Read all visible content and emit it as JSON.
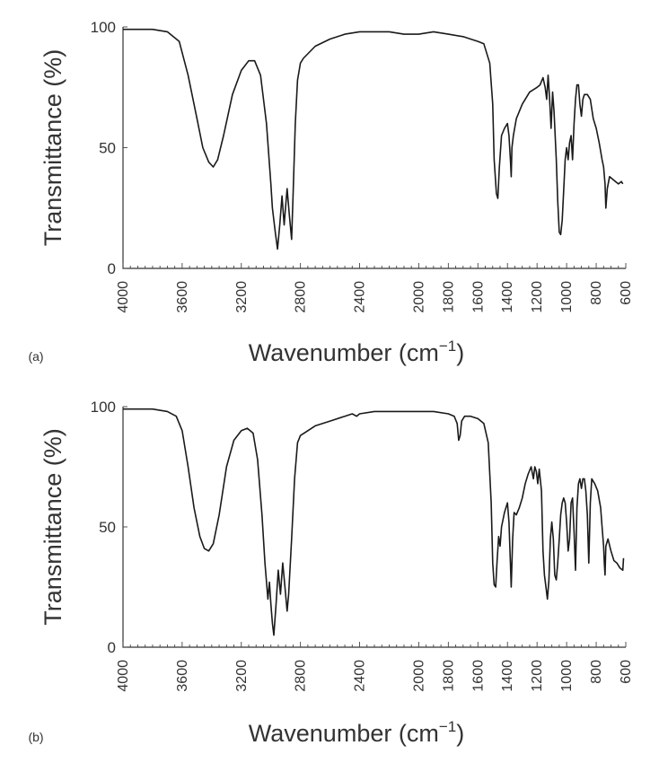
{
  "chart_data": [
    {
      "type": "line",
      "panel_label": "(a)",
      "ylabel": "Transmittance (%)",
      "xlabel_main": "Wavenumber (cm",
      "xlabel_sup": "−1",
      "xlabel_close": ")",
      "xlim": [
        4000,
        600
      ],
      "ylim": [
        0,
        100
      ],
      "x_reversed": true,
      "xticks": [
        "4000",
        "3600",
        "3200",
        "2800",
        "2400",
        "2000",
        "1800",
        "1600",
        "1400",
        "1200",
        "1000",
        "800",
        "600"
      ],
      "yticks": [
        "0",
        "50",
        "100"
      ],
      "series": [
        {
          "points": [
            [
              4000,
              99
            ],
            [
              3800,
              99
            ],
            [
              3700,
              98
            ],
            [
              3620,
              94
            ],
            [
              3560,
              80
            ],
            [
              3500,
              62
            ],
            [
              3460,
              50
            ],
            [
              3420,
              44
            ],
            [
              3390,
              42
            ],
            [
              3360,
              45
            ],
            [
              3320,
              55
            ],
            [
              3260,
              72
            ],
            [
              3200,
              82
            ],
            [
              3150,
              86
            ],
            [
              3110,
              86
            ],
            [
              3070,
              80
            ],
            [
              3030,
              60
            ],
            [
              3000,
              35
            ],
            [
              2990,
              25
            ],
            [
              2970,
              15
            ],
            [
              2955,
              8
            ],
            [
              2940,
              18
            ],
            [
              2925,
              30
            ],
            [
              2910,
              18
            ],
            [
              2900,
              26
            ],
            [
              2890,
              33
            ],
            [
              2875,
              22
            ],
            [
              2860,
              12
            ],
            [
              2850,
              30
            ],
            [
              2835,
              60
            ],
            [
              2820,
              78
            ],
            [
              2800,
              85
            ],
            [
              2780,
              87
            ],
            [
              2700,
              92
            ],
            [
              2600,
              95
            ],
            [
              2500,
              97
            ],
            [
              2400,
              98
            ],
            [
              2300,
              98
            ],
            [
              2200,
              98
            ],
            [
              2100,
              97
            ],
            [
              2000,
              97
            ],
            [
              1900,
              98
            ],
            [
              1800,
              97
            ],
            [
              1700,
              96
            ],
            [
              1650,
              95
            ],
            [
              1600,
              94
            ],
            [
              1560,
              93
            ],
            [
              1520,
              85
            ],
            [
              1500,
              68
            ],
            [
              1490,
              45
            ],
            [
              1475,
              31
            ],
            [
              1465,
              29
            ],
            [
              1455,
              42
            ],
            [
              1440,
              55
            ],
            [
              1420,
              58
            ],
            [
              1400,
              60
            ],
            [
              1390,
              55
            ],
            [
              1380,
              45
            ],
            [
              1375,
              38
            ],
            [
              1370,
              50
            ],
            [
              1360,
              55
            ],
            [
              1340,
              62
            ],
            [
              1300,
              68
            ],
            [
              1250,
              73
            ],
            [
              1200,
              75
            ],
            [
              1180,
              76
            ],
            [
              1160,
              79
            ],
            [
              1145,
              75
            ],
            [
              1135,
              70
            ],
            [
              1125,
              80
            ],
            [
              1115,
              70
            ],
            [
              1105,
              58
            ],
            [
              1095,
              73
            ],
            [
              1085,
              65
            ],
            [
              1070,
              45
            ],
            [
              1060,
              28
            ],
            [
              1050,
              15
            ],
            [
              1040,
              14
            ],
            [
              1030,
              20
            ],
            [
              1020,
              32
            ],
            [
              1010,
              45
            ],
            [
              1000,
              50
            ],
            [
              990,
              45
            ],
            [
              980,
              52
            ],
            [
              970,
              55
            ],
            [
              960,
              45
            ],
            [
              950,
              60
            ],
            [
              940,
              70
            ],
            [
              930,
              76
            ],
            [
              920,
              76
            ],
            [
              910,
              68
            ],
            [
              900,
              63
            ],
            [
              890,
              70
            ],
            [
              880,
              72
            ],
            [
              860,
              72
            ],
            [
              840,
              70
            ],
            [
              820,
              62
            ],
            [
              800,
              58
            ],
            [
              780,
              52
            ],
            [
              760,
              45
            ],
            [
              750,
              42
            ],
            [
              740,
              35
            ],
            [
              735,
              25
            ],
            [
              725,
              33
            ],
            [
              710,
              38
            ],
            [
              690,
              37
            ],
            [
              670,
              36
            ],
            [
              650,
              35
            ],
            [
              630,
              36
            ],
            [
              620,
              35
            ]
          ]
        }
      ]
    },
    {
      "type": "line",
      "panel_label": "(b)",
      "ylabel": "Transmittance (%)",
      "xlabel_main": "Wavenumber (cm",
      "xlabel_sup": "−1",
      "xlabel_close": ")",
      "xlim": [
        4000,
        600
      ],
      "ylim": [
        0,
        100
      ],
      "x_reversed": true,
      "xticks": [
        "4000",
        "3600",
        "3200",
        "2800",
        "2400",
        "2000",
        "1800",
        "1600",
        "1400",
        "1200",
        "1000",
        "800",
        "600"
      ],
      "yticks": [
        "0",
        "50",
        "100"
      ],
      "series": [
        {
          "points": [
            [
              4000,
              99
            ],
            [
              3800,
              99
            ],
            [
              3700,
              98
            ],
            [
              3640,
              96
            ],
            [
              3600,
              90
            ],
            [
              3560,
              75
            ],
            [
              3520,
              58
            ],
            [
              3480,
              46
            ],
            [
              3450,
              41
            ],
            [
              3420,
              40
            ],
            [
              3390,
              43
            ],
            [
              3350,
              55
            ],
            [
              3300,
              75
            ],
            [
              3250,
              86
            ],
            [
              3200,
              90
            ],
            [
              3160,
              91
            ],
            [
              3120,
              89
            ],
            [
              3090,
              78
            ],
            [
              3060,
              55
            ],
            [
              3040,
              35
            ],
            [
              3020,
              20
            ],
            [
              3010,
              27
            ],
            [
              3000,
              18
            ],
            [
              2990,
              10
            ],
            [
              2980,
              5
            ],
            [
              2965,
              18
            ],
            [
              2950,
              32
            ],
            [
              2935,
              22
            ],
            [
              2920,
              35
            ],
            [
              2905,
              25
            ],
            [
              2890,
              15
            ],
            [
              2880,
              22
            ],
            [
              2860,
              45
            ],
            [
              2840,
              70
            ],
            [
              2820,
              85
            ],
            [
              2800,
              88
            ],
            [
              2750,
              90
            ],
            [
              2700,
              92
            ],
            [
              2600,
              94
            ],
            [
              2500,
              96
            ],
            [
              2450,
              97
            ],
            [
              2420,
              96
            ],
            [
              2400,
              97
            ],
            [
              2300,
              98
            ],
            [
              2200,
              98
            ],
            [
              2000,
              98
            ],
            [
              1900,
              98
            ],
            [
              1800,
              97
            ],
            [
              1760,
              96
            ],
            [
              1740,
              93
            ],
            [
              1730,
              86
            ],
            [
              1720,
              88
            ],
            [
              1710,
              94
            ],
            [
              1690,
              96
            ],
            [
              1650,
              96
            ],
            [
              1600,
              95
            ],
            [
              1560,
              93
            ],
            [
              1530,
              85
            ],
            [
              1510,
              60
            ],
            [
              1500,
              35
            ],
            [
              1490,
              26
            ],
            [
              1480,
              25
            ],
            [
              1470,
              36
            ],
            [
              1460,
              46
            ],
            [
              1450,
              42
            ],
            [
              1440,
              50
            ],
            [
              1420,
              56
            ],
            [
              1400,
              60
            ],
            [
              1390,
              52
            ],
            [
              1380,
              35
            ],
            [
              1375,
              25
            ],
            [
              1365,
              45
            ],
            [
              1355,
              56
            ],
            [
              1340,
              55
            ],
            [
              1320,
              58
            ],
            [
              1300,
              62
            ],
            [
              1280,
              68
            ],
            [
              1260,
              72
            ],
            [
              1240,
              75
            ],
            [
              1225,
              70
            ],
            [
              1215,
              75
            ],
            [
              1205,
              73
            ],
            [
              1195,
              68
            ],
            [
              1185,
              74
            ],
            [
              1170,
              65
            ],
            [
              1160,
              40
            ],
            [
              1150,
              30
            ],
            [
              1140,
              25
            ],
            [
              1130,
              20
            ],
            [
              1120,
              28
            ],
            [
              1110,
              45
            ],
            [
              1100,
              52
            ],
            [
              1090,
              45
            ],
            [
              1080,
              30
            ],
            [
              1070,
              28
            ],
            [
              1060,
              35
            ],
            [
              1050,
              45
            ],
            [
              1040,
              55
            ],
            [
              1030,
              60
            ],
            [
              1020,
              62
            ],
            [
              1010,
              60
            ],
            [
              1000,
              52
            ],
            [
              990,
              40
            ],
            [
              980,
              45
            ],
            [
              970,
              60
            ],
            [
              960,
              62
            ],
            [
              950,
              48
            ],
            [
              940,
              32
            ],
            [
              930,
              58
            ],
            [
              920,
              68
            ],
            [
              910,
              70
            ],
            [
              900,
              66
            ],
            [
              890,
              70
            ],
            [
              880,
              70
            ],
            [
              870,
              65
            ],
            [
              860,
              55
            ],
            [
              850,
              35
            ],
            [
              840,
              60
            ],
            [
              830,
              70
            ],
            [
              810,
              68
            ],
            [
              790,
              65
            ],
            [
              770,
              58
            ],
            [
              760,
              50
            ],
            [
              750,
              42
            ],
            [
              745,
              35
            ],
            [
              740,
              30
            ],
            [
              735,
              42
            ],
            [
              720,
              45
            ],
            [
              700,
              40
            ],
            [
              680,
              36
            ],
            [
              660,
              35
            ],
            [
              640,
              33
            ],
            [
              620,
              32
            ],
            [
              615,
              37
            ]
          ]
        }
      ]
    }
  ]
}
